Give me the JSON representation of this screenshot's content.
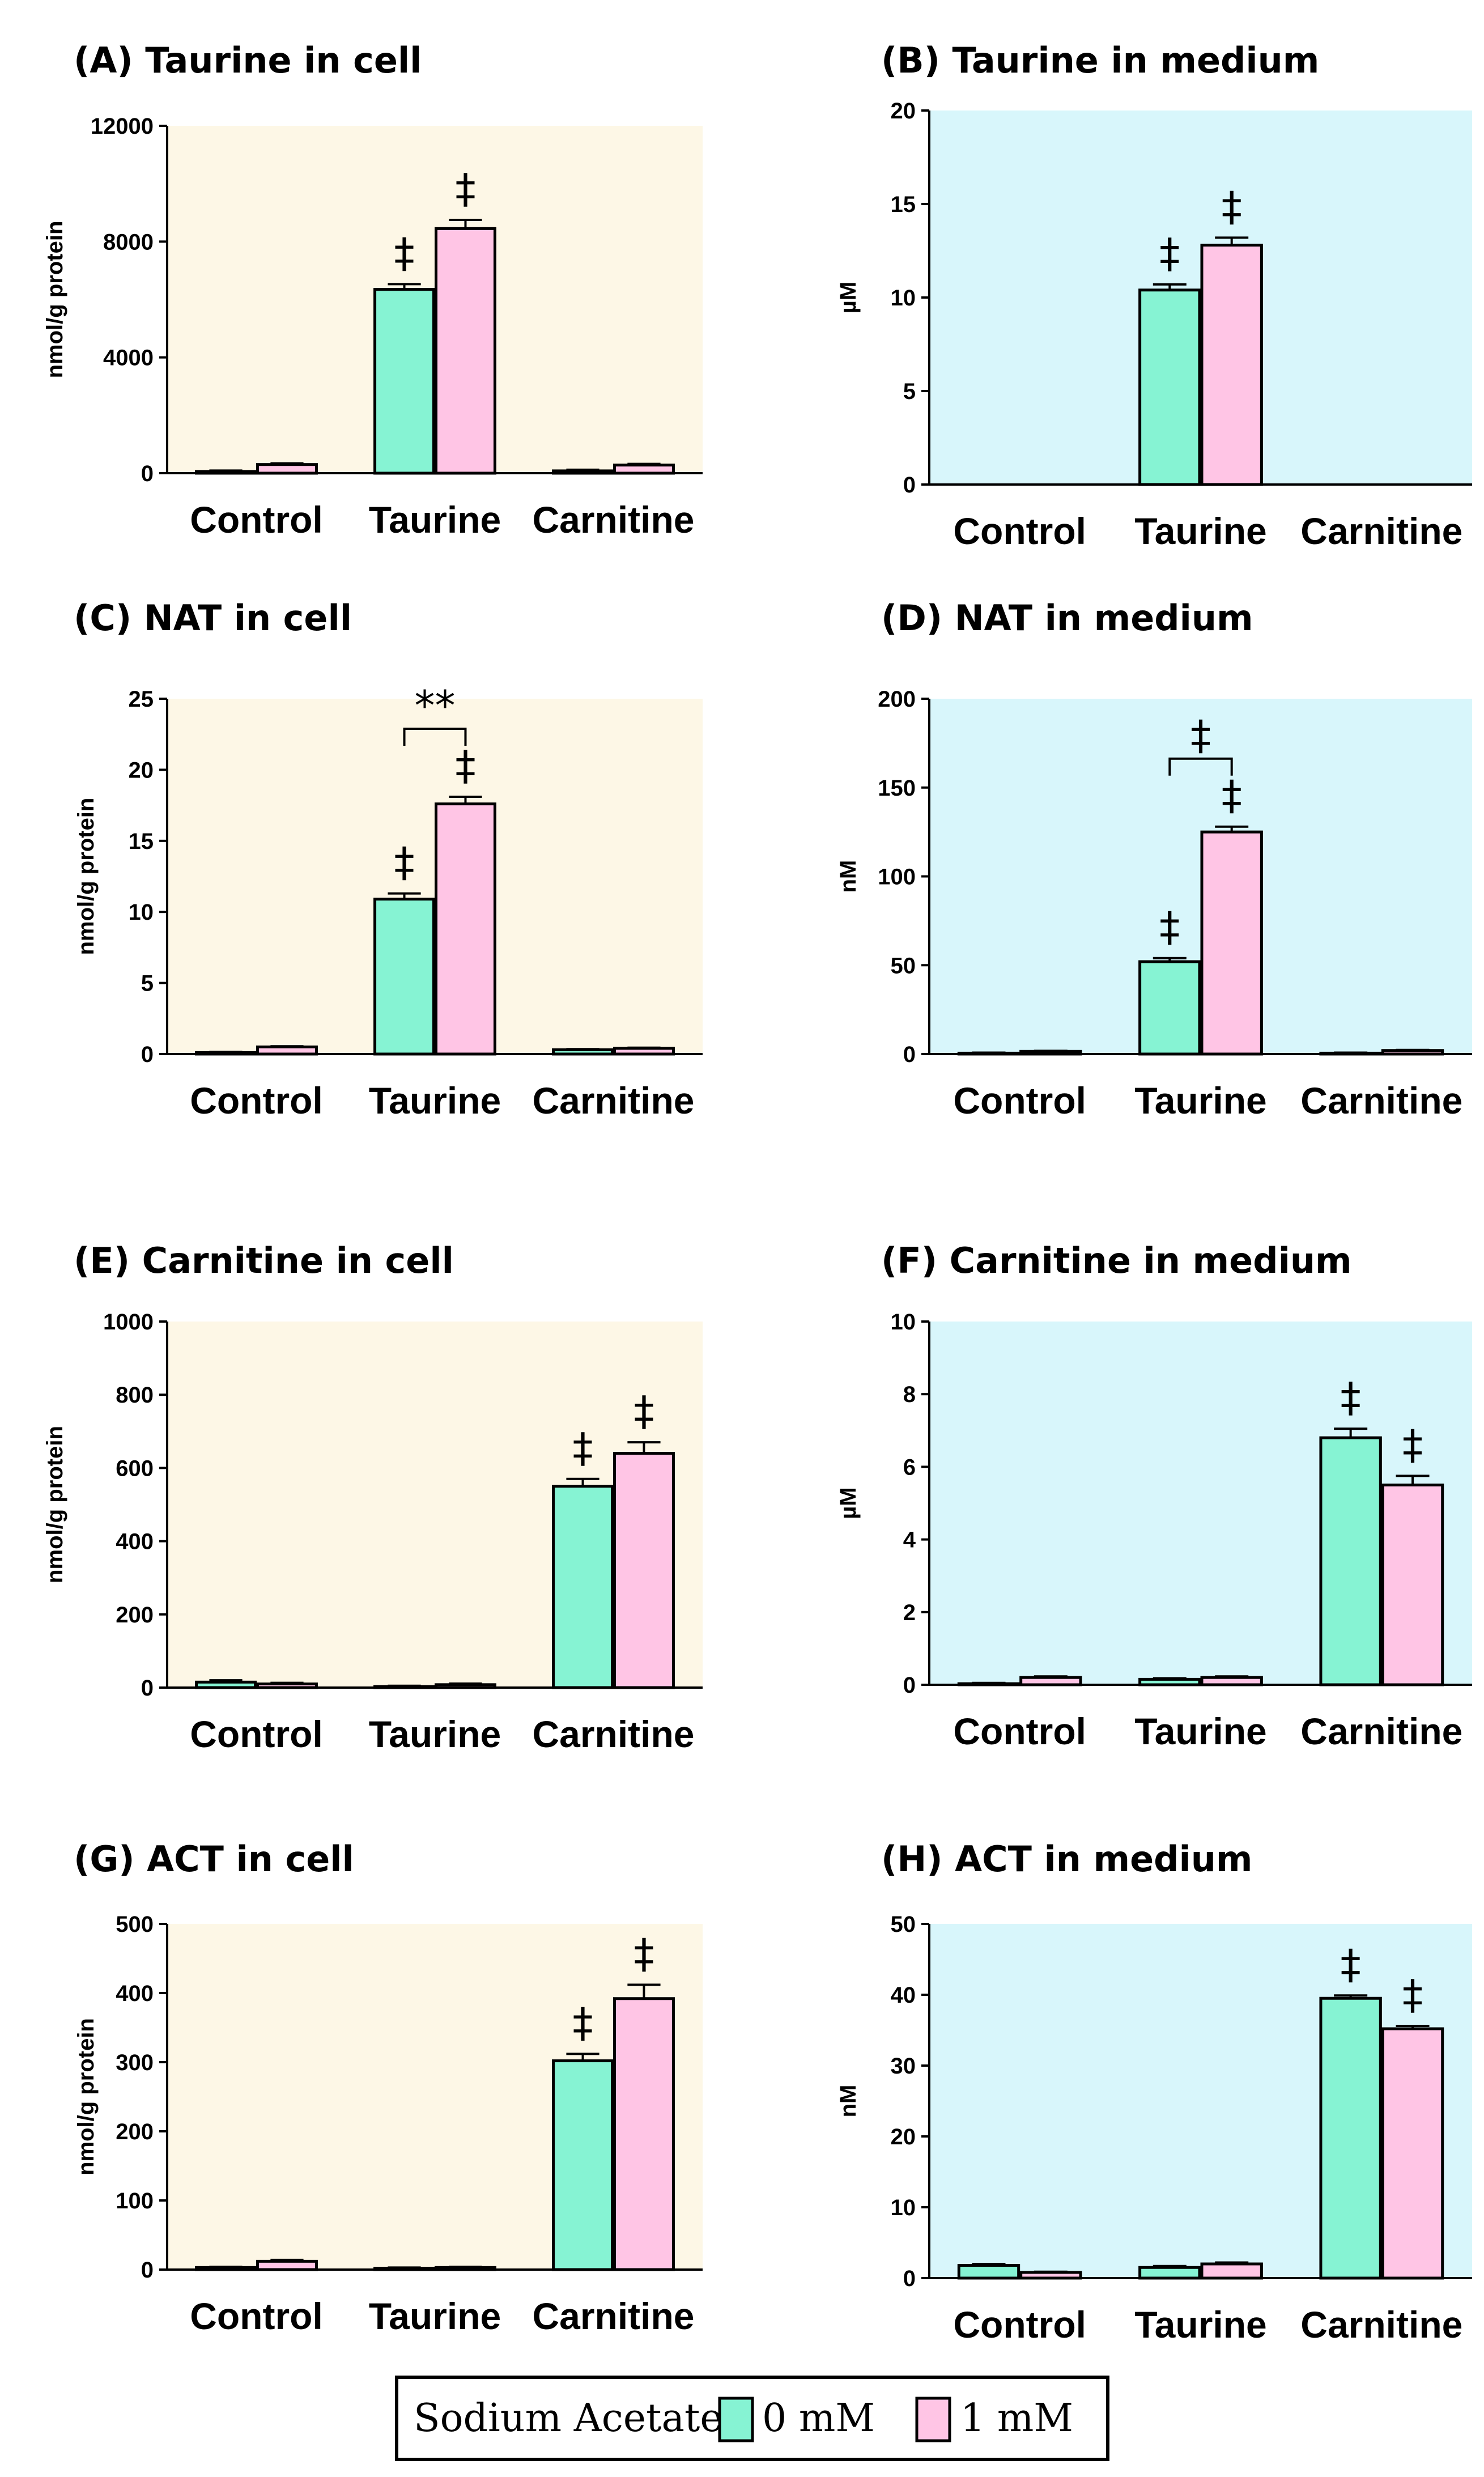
{
  "chart_data": [
    {
      "type": "bar",
      "title": "(A) Taurine in cell",
      "ylabel": "nmol/g protein",
      "categories": [
        "Control",
        "Taurine",
        "Carnitine"
      ],
      "yticks": [
        "0",
        "4000",
        "8000",
        "12000"
      ],
      "ylim": [
        0,
        12000
      ],
      "background": "#fdf7e6",
      "series": [
        {
          "name": "0 mM",
          "values": [
            60,
            6350,
            80
          ],
          "errors": [
            30,
            180,
            40
          ],
          "sig": [
            "",
            "‡",
            ""
          ]
        },
        {
          "name": "1 mM",
          "values": [
            300,
            8450,
            280
          ],
          "errors": [
            40,
            300,
            40
          ],
          "sig": [
            "",
            "‡",
            ""
          ]
        }
      ],
      "bracket": null
    },
    {
      "type": "bar",
      "title": "(B) Taurine in medium",
      "ylabel": "µM",
      "categories": [
        "Control",
        "Taurine",
        "Carnitine"
      ],
      "yticks": [
        "0",
        "5",
        "10",
        "15",
        "20"
      ],
      "ylim": [
        0,
        20
      ],
      "background": "#d8f6fb",
      "series": [
        {
          "name": "0 mM",
          "values": [
            0,
            10.4,
            0
          ],
          "errors": [
            0,
            0.3,
            0
          ],
          "sig": [
            "",
            "‡",
            ""
          ]
        },
        {
          "name": "1 mM",
          "values": [
            0,
            12.8,
            0
          ],
          "errors": [
            0,
            0.4,
            0
          ],
          "sig": [
            "",
            "‡",
            ""
          ]
        }
      ],
      "bracket": null
    },
    {
      "type": "bar",
      "title": "(C) NAT in cell",
      "ylabel": "nmol/g protein",
      "categories": [
        "Control",
        "Taurine",
        "Carnitine"
      ],
      "yticks": [
        "0",
        "5",
        "10",
        "15",
        "20",
        "25"
      ],
      "ylim": [
        0,
        25
      ],
      "background": "#fdf7e6",
      "series": [
        {
          "name": "0 mM",
          "values": [
            0.1,
            10.9,
            0.3
          ],
          "errors": [
            0.05,
            0.4,
            0.05
          ],
          "sig": [
            "",
            "‡",
            ""
          ]
        },
        {
          "name": "1 mM",
          "values": [
            0.5,
            17.6,
            0.4
          ],
          "errors": [
            0.05,
            0.5,
            0.05
          ],
          "sig": [
            "",
            "‡",
            ""
          ]
        }
      ],
      "bracket": {
        "category": 1,
        "label": "**"
      }
    },
    {
      "type": "bar",
      "title": "(D) NAT in medium",
      "ylabel": "nM",
      "categories": [
        "Control",
        "Taurine",
        "Carnitine"
      ],
      "yticks": [
        "0",
        "50",
        "100",
        "150",
        "200"
      ],
      "ylim": [
        0,
        200
      ],
      "background": "#d8f6fb",
      "series": [
        {
          "name": "0 mM",
          "values": [
            0.5,
            52,
            0.5
          ],
          "errors": [
            0.3,
            2,
            0.3
          ],
          "sig": [
            "",
            "‡",
            ""
          ]
        },
        {
          "name": "1 mM",
          "values": [
            1.5,
            125,
            2
          ],
          "errors": [
            0.3,
            3,
            0.3
          ],
          "sig": [
            "",
            "‡",
            ""
          ]
        }
      ],
      "bracket": {
        "category": 1,
        "label": "‡"
      }
    },
    {
      "type": "bar",
      "title": "(E) Carnitine in cell",
      "ylabel": "nmol/g protein",
      "categories": [
        "Control",
        "Taurine",
        "Carnitine"
      ],
      "yticks": [
        "0",
        "200",
        "400",
        "600",
        "800",
        "1000"
      ],
      "ylim": [
        0,
        1000
      ],
      "background": "#fdf7e6",
      "series": [
        {
          "name": "0 mM",
          "values": [
            15,
            3,
            550
          ],
          "errors": [
            5,
            2,
            20
          ],
          "sig": [
            "",
            "",
            "‡"
          ]
        },
        {
          "name": "1 mM",
          "values": [
            10,
            8,
            640
          ],
          "errors": [
            3,
            3,
            30
          ],
          "sig": [
            "",
            "",
            "‡"
          ]
        }
      ],
      "bracket": null
    },
    {
      "type": "bar",
      "title": "(F) Carnitine in medium",
      "ylabel": "µM",
      "categories": [
        "Control",
        "Taurine",
        "Carnitine"
      ],
      "yticks": [
        "0",
        "2",
        "4",
        "6",
        "8",
        "10"
      ],
      "ylim": [
        0,
        10
      ],
      "background": "#d8f6fb",
      "series": [
        {
          "name": "0 mM",
          "values": [
            0.03,
            0.15,
            6.8
          ],
          "errors": [
            0.02,
            0.03,
            0.25
          ],
          "sig": [
            "",
            "",
            "‡"
          ]
        },
        {
          "name": "1 mM",
          "values": [
            0.2,
            0.2,
            5.5
          ],
          "errors": [
            0.03,
            0.03,
            0.25
          ],
          "sig": [
            "",
            "",
            "‡"
          ]
        }
      ],
      "bracket": null
    },
    {
      "type": "bar",
      "title": "(G) ACT in cell",
      "ylabel": "nmol/g protein",
      "categories": [
        "Control",
        "Taurine",
        "Carnitine"
      ],
      "yticks": [
        "0",
        "100",
        "200",
        "300",
        "400",
        "500"
      ],
      "ylim": [
        0,
        500
      ],
      "background": "#fdf7e6",
      "series": [
        {
          "name": "0 mM",
          "values": [
            3,
            2,
            302
          ],
          "errors": [
            1,
            1,
            10
          ],
          "sig": [
            "",
            "",
            "‡"
          ]
        },
        {
          "name": "1 mM",
          "values": [
            12,
            3,
            392
          ],
          "errors": [
            2,
            1,
            20
          ],
          "sig": [
            "",
            "",
            "‡"
          ]
        }
      ],
      "bracket": null
    },
    {
      "type": "bar",
      "title": "(H) ACT in medium",
      "ylabel": "nM",
      "categories": [
        "Control",
        "Taurine",
        "Carnitine"
      ],
      "yticks": [
        "0",
        "10",
        "20",
        "30",
        "40",
        "50"
      ],
      "ylim": [
        0,
        50
      ],
      "background": "#d8f6fb",
      "series": [
        {
          "name": "0 mM",
          "values": [
            1.8,
            1.5,
            39.5
          ],
          "errors": [
            0.2,
            0.2,
            0.4
          ],
          "sig": [
            "",
            "",
            "‡"
          ]
        },
        {
          "name": "1 mM",
          "values": [
            0.8,
            2.0,
            35.2
          ],
          "errors": [
            0.1,
            0.2,
            0.4
          ],
          "sig": [
            "",
            "",
            "‡"
          ]
        }
      ],
      "bracket": null
    }
  ],
  "legend": {
    "title": "Sodium Acetate",
    "items": [
      {
        "label": "0 mM",
        "color": "#86f3d3"
      },
      {
        "label": "1 mM",
        "color": "#ffc5e5"
      }
    ]
  },
  "colors": {
    "series0": "#86f3d3",
    "series1": "#ffc5e5",
    "stroke": "#000000"
  }
}
